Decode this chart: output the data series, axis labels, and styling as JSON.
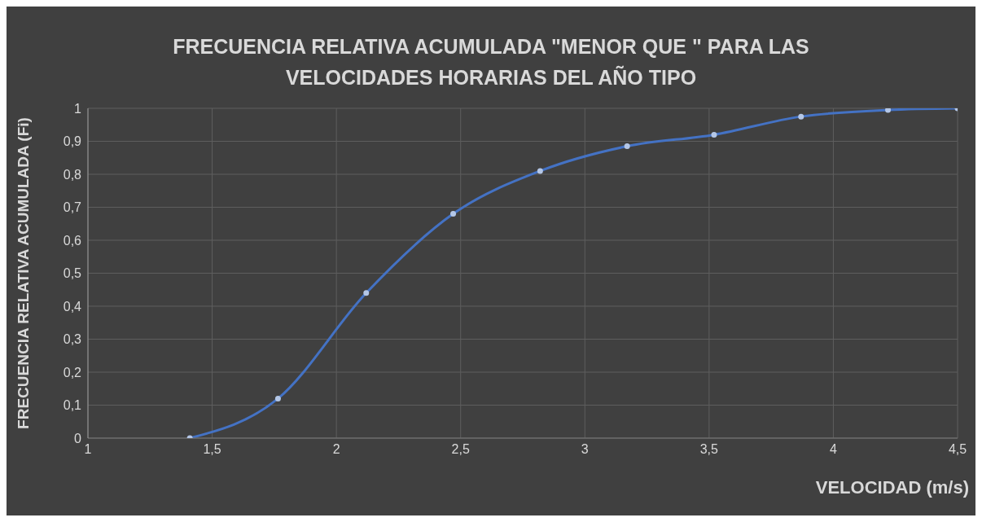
{
  "chart_data": {
    "type": "line",
    "title": "FRECUENCIA RELATIVA ACUMULADA \"MENOR QUE \" PARA LAS VELOCIDADES HORARIAS DEL AÑO TIPO",
    "xlabel": "VELOCIDAD (m/s)",
    "ylabel": "FRECUENCIA RELATIVA ACUMULADA (Fi)",
    "x": [
      1.41,
      1.765,
      2.12,
      2.47,
      2.82,
      3.17,
      3.52,
      3.87,
      4.22,
      4.5
    ],
    "series": [
      {
        "color": "#4472c4",
        "values": [
          0,
          0.12,
          0.44,
          0.68,
          0.81,
          0.885,
          0.92,
          0.975,
          0.995,
          1
        ]
      }
    ],
    "xlim": [
      1,
      4.5
    ],
    "xticks": [
      1,
      {
        "value": 1.5,
        "label": "1,5"
      },
      2,
      {
        "value": 2.5,
        "label": "2,5"
      },
      3,
      {
        "value": 3.5,
        "label": "3,5"
      },
      4,
      {
        "value": 4.5,
        "label": "4,5"
      }
    ],
    "ylim": [
      0,
      1
    ],
    "yticks": [
      0,
      {
        "value": 0.1,
        "label": "0,1"
      },
      {
        "value": 0.2,
        "label": "0,2"
      },
      {
        "value": 0.3,
        "label": "0,3"
      },
      {
        "value": 0.4,
        "label": "0,4"
      },
      {
        "value": 0.5,
        "label": "0,5"
      },
      {
        "value": 0.6,
        "label": "0,6"
      },
      {
        "value": 0.7,
        "label": "0,7"
      },
      {
        "value": 0.8,
        "label": "0,8"
      },
      {
        "value": 0.9,
        "label": "0,9"
      },
      1
    ],
    "grid": true,
    "marker": "circle",
    "line_style": "solid",
    "legend": false
  }
}
